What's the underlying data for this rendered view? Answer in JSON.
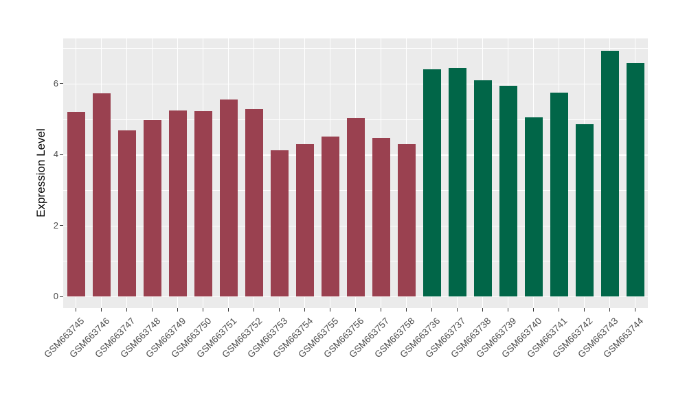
{
  "chart_data": {
    "type": "bar",
    "title": "",
    "xlabel": "",
    "ylabel": "Expression Level",
    "ylim": [
      0,
      7.27
    ],
    "yticks_major": [
      0,
      2,
      4,
      6
    ],
    "yticks_minor": [
      1,
      3,
      5,
      7
    ],
    "grid": "on",
    "legend": "none",
    "categories": [
      "GSM663745",
      "GSM663746",
      "GSM663747",
      "GSM663748",
      "GSM663749",
      "GSM663750",
      "GSM663751",
      "GSM663752",
      "GSM663753",
      "GSM663754",
      "GSM663755",
      "GSM663756",
      "GSM663757",
      "GSM663758",
      "GSM663736",
      "GSM663737",
      "GSM663738",
      "GSM663739",
      "GSM663740",
      "GSM663741",
      "GSM663742",
      "GSM663743",
      "GSM663744"
    ],
    "values": [
      5.2,
      5.72,
      4.68,
      4.97,
      5.24,
      5.22,
      5.55,
      5.28,
      4.12,
      4.29,
      4.5,
      5.03,
      4.47,
      4.3,
      6.41,
      6.45,
      6.09,
      5.94,
      5.05,
      5.74,
      4.85,
      6.92,
      6.57
    ],
    "groups": [
      "group_a",
      "group_a",
      "group_a",
      "group_a",
      "group_a",
      "group_a",
      "group_a",
      "group_a",
      "group_a",
      "group_a",
      "group_a",
      "group_a",
      "group_a",
      "group_a",
      "group_b",
      "group_b",
      "group_b",
      "group_b",
      "group_b",
      "group_b",
      "group_b",
      "group_b",
      "group_b"
    ],
    "group_colors": {
      "group_a": "#9A4150",
      "group_b": "#016648"
    },
    "style": {
      "panel_bg": "#EBEBEB",
      "grid_color": "#FFFFFF",
      "axis_text_color": "#4D4D4D",
      "axis_title_color": "#000000",
      "tick_mark_color": "#333333"
    }
  }
}
